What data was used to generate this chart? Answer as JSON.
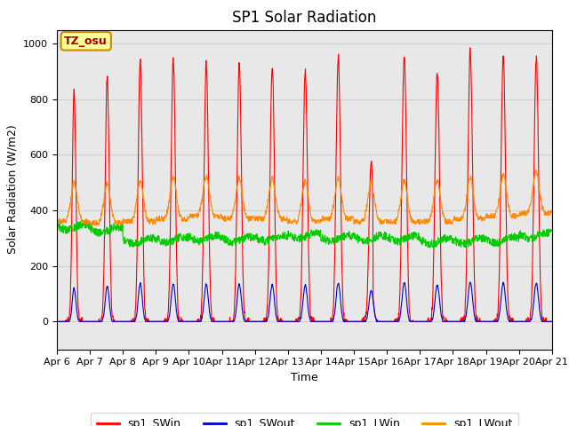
{
  "title": "SP1 Solar Radiation",
  "ylabel": "Solar Radiation (W/m2)",
  "xlabel": "Time",
  "ylim": [
    -100,
    1050
  ],
  "xlim": [
    0,
    360
  ],
  "x_tick_labels": [
    "Apr 6",
    "Apr 7",
    "Apr 8",
    "Apr 9",
    "Apr 10",
    "Apr 11",
    "Apr 12",
    "Apr 13",
    "Apr 14",
    "Apr 15",
    "Apr 16",
    "Apr 17",
    "Apr 18",
    "Apr 19",
    "Apr 20",
    "Apr 21"
  ],
  "x_tick_positions": [
    0,
    24,
    48,
    72,
    96,
    120,
    144,
    168,
    192,
    216,
    240,
    264,
    288,
    312,
    336,
    360
  ],
  "colors": {
    "SWin": "#ff0000",
    "SWout": "#0000cc",
    "LWin": "#00cc00",
    "LWout": "#ff8800"
  },
  "legend_labels": [
    "sp1_SWin",
    "sp1_SWout",
    "sp1_LWin",
    "sp1_LWout"
  ],
  "annotation_text": "TZ_osu",
  "grid_color": "#d0d0d0",
  "bg_color": "#e8e8e8",
  "title_fontsize": 12,
  "label_fontsize": 9,
  "tick_fontsize": 8
}
